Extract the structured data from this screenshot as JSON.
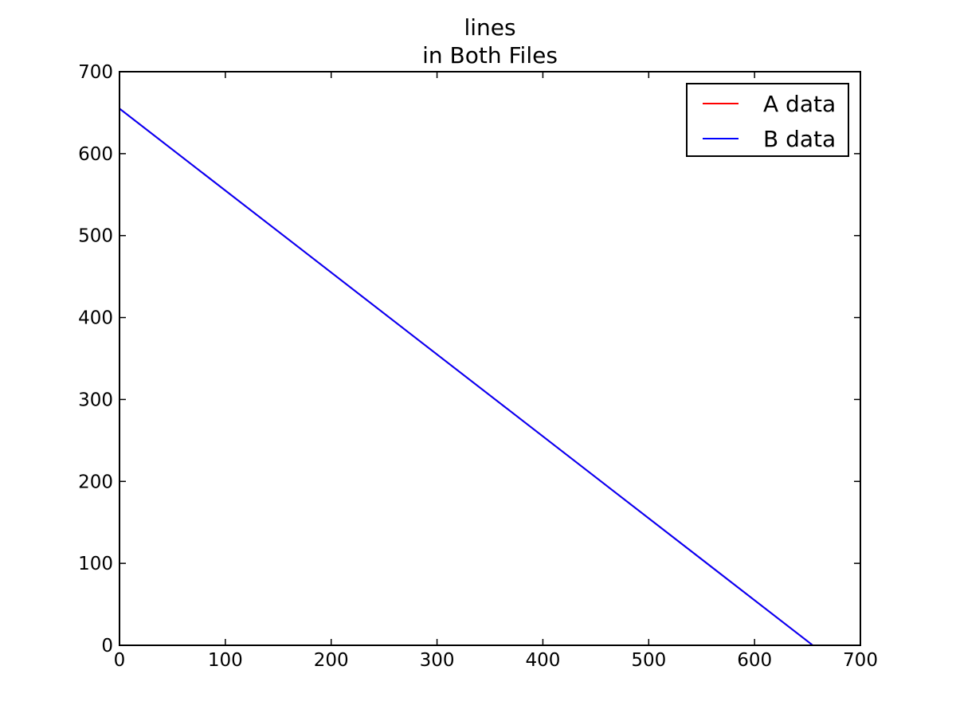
{
  "chart_data": {
    "type": "line",
    "title": [
      "lines",
      "in Both Files"
    ],
    "xlabel": "",
    "ylabel": "",
    "xlim": [
      0,
      700
    ],
    "ylim": [
      0,
      700
    ],
    "xticks": [
      0,
      100,
      200,
      300,
      400,
      500,
      600,
      700
    ],
    "yticks": [
      0,
      100,
      200,
      300,
      400,
      500,
      600,
      700
    ],
    "grid": false,
    "legend_position": "top-right",
    "series": [
      {
        "name": "A data",
        "color": "#ff0000",
        "x": [
          0,
          655
        ],
        "y": [
          655,
          0
        ]
      },
      {
        "name": "B data",
        "color": "#0000ff",
        "x": [
          0,
          655
        ],
        "y": [
          655,
          0
        ]
      }
    ]
  }
}
